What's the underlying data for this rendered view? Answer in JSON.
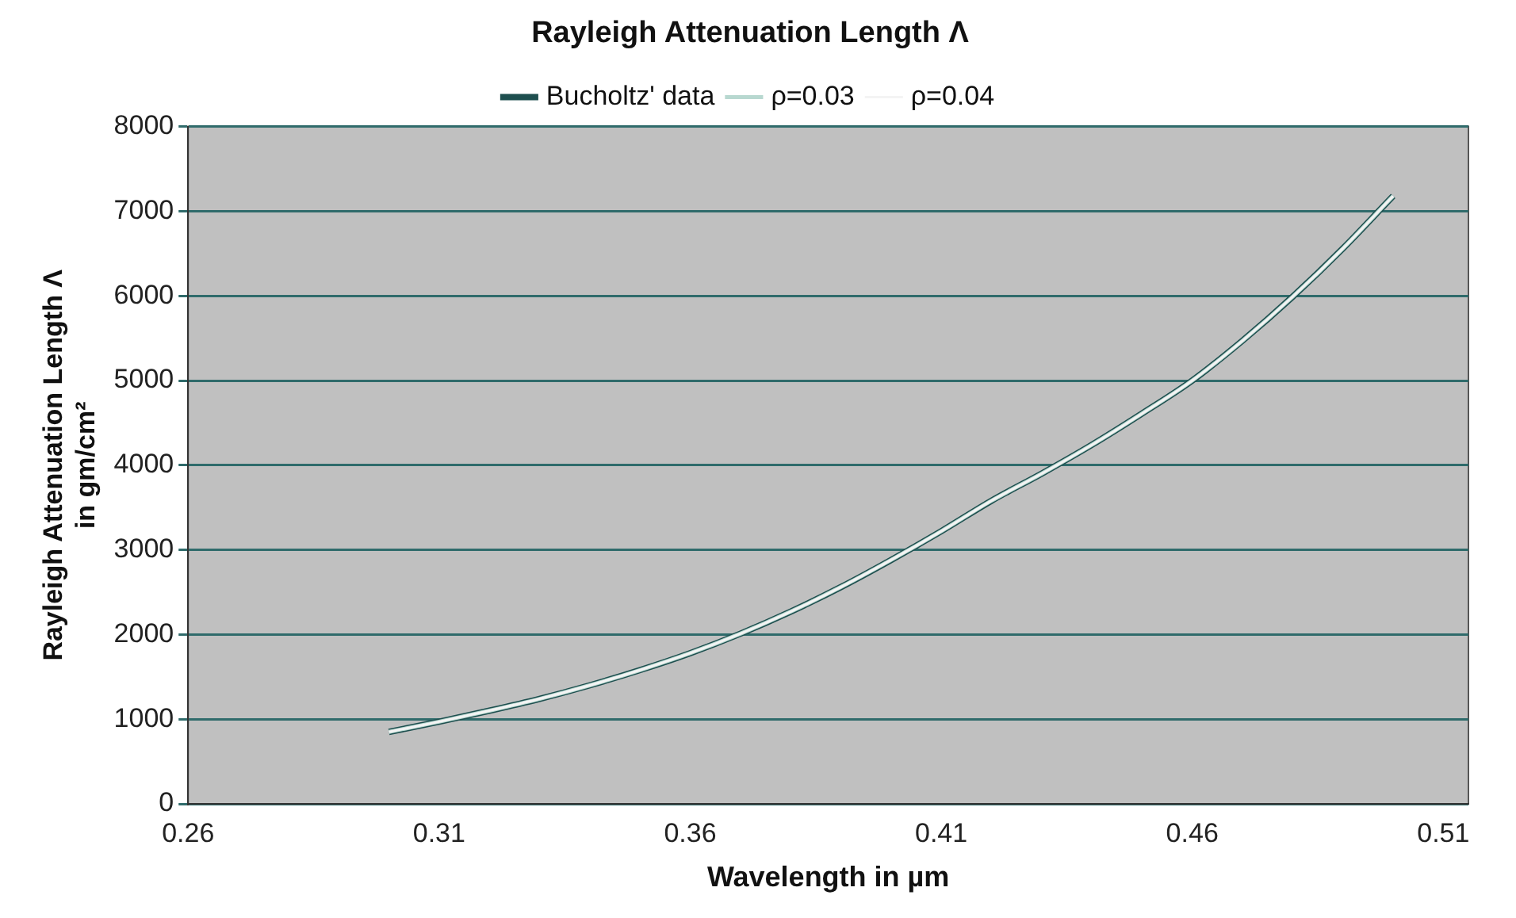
{
  "chart_data": {
    "type": "line",
    "title": "Rayleigh Attenuation Length Λ",
    "xlabel": "Wavelength in µm",
    "ylabel": "Rayleigh Attenuation Length Λ\nin gm/cm²",
    "x": [
      0.3,
      0.31,
      0.32,
      0.33,
      0.34,
      0.35,
      0.36,
      0.37,
      0.38,
      0.39,
      0.4,
      0.41,
      0.42,
      0.43,
      0.44,
      0.45,
      0.46,
      0.47,
      0.48,
      0.49,
      0.5
    ],
    "series": [
      {
        "name": "Bucholtz' data",
        "color": "#1e4f4f",
        "values": [
          850,
          970,
          1100,
          1240,
          1400,
          1580,
          1780,
          2010,
          2270,
          2560,
          2880,
          3220,
          3580,
          3900,
          4240,
          4610,
          5000,
          5470,
          5990,
          6560,
          7180
        ]
      },
      {
        "name": "ρ=0.03",
        "color": "#b8d8d0",
        "values": [
          850,
          970,
          1100,
          1240,
          1400,
          1580,
          1780,
          2010,
          2270,
          2560,
          2880,
          3220,
          3580,
          3900,
          4240,
          4610,
          5000,
          5470,
          5990,
          6560,
          7180
        ]
      },
      {
        "name": "ρ=0.04",
        "color": "#f4f4f4",
        "values": [
          850,
          970,
          1100,
          1240,
          1400,
          1580,
          1780,
          2010,
          2270,
          2560,
          2880,
          3220,
          3580,
          3900,
          4240,
          4610,
          5000,
          5470,
          5990,
          6560,
          7180
        ]
      }
    ],
    "xlim": [
      0.26,
      0.515
    ],
    "xticks": [
      0.26,
      0.31,
      0.36,
      0.41,
      0.46,
      0.51
    ],
    "ylim": [
      0,
      8000
    ],
    "yticks": [
      0,
      1000,
      2000,
      3000,
      4000,
      5000,
      6000,
      7000,
      8000
    ],
    "grid": "y",
    "legend": "top",
    "marker": "none",
    "line_style": "solid"
  }
}
